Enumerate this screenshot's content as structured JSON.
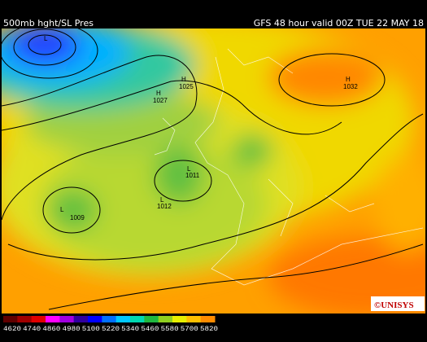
{
  "header": {
    "left": "500mb hght/SL Pres",
    "right": "GFS 48 hour valid 00Z TUE 22 MAY 18"
  },
  "systems": [
    {
      "letter": "L"
    },
    {
      "letter": "H",
      "pressure": "1025"
    },
    {
      "letter": "H",
      "pressure": "1027"
    },
    {
      "letter": "H",
      "pressure": "1032"
    },
    {
      "letter": "L",
      "pressure": "1011"
    },
    {
      "letter": "L",
      "pressure": "1012"
    },
    {
      "letter": "L",
      "pressure": "1009"
    }
  ],
  "logo": "©UNISYS",
  "legend": {
    "ticks": [
      4620,
      4740,
      4860,
      4980,
      5100,
      5220,
      5340,
      5460,
      5580,
      5700,
      5820
    ],
    "colors": [
      "#600000",
      "#a00000",
      "#e00000",
      "#ff00ff",
      "#a000e0",
      "#3000a0",
      "#0000ff",
      "#0070ff",
      "#00c8ff",
      "#00d8b0",
      "#20b840",
      "#90d020",
      "#e8f000",
      "#ffc000",
      "#ff8c00"
    ]
  }
}
